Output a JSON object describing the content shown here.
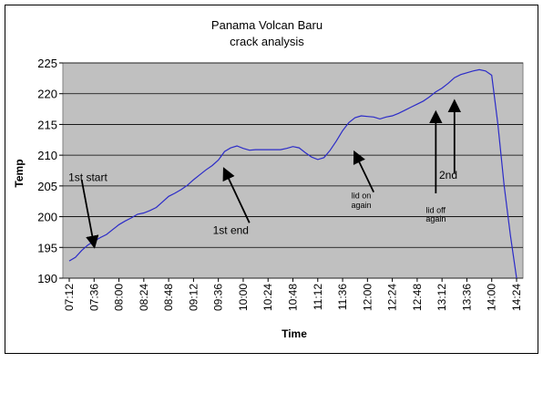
{
  "chart_data": {
    "type": "line",
    "title": "Panama Volcan Baru",
    "subtitle": "crack analysis",
    "xlabel": "Time",
    "ylabel": "Temp",
    "ylim": [
      190,
      225
    ],
    "yticks": [
      190,
      195,
      200,
      205,
      210,
      215,
      220,
      225
    ],
    "xticks": [
      "07:12",
      "07:36",
      "08:00",
      "08:24",
      "08:48",
      "09:12",
      "09:36",
      "10:00",
      "10:24",
      "10:48",
      "11:12",
      "11:36",
      "12:00",
      "12:24",
      "12:48",
      "13:12",
      "13:36",
      "14:00",
      "14:24"
    ],
    "grid": "horizontal",
    "plot_background": "#c0c0c0",
    "series_color": "#2b2bc8",
    "series": [
      {
        "x": [
          "07:12",
          "07:18",
          "07:24",
          "07:30",
          "07:36",
          "07:42",
          "07:48",
          "07:54",
          "08:00",
          "08:06",
          "08:12",
          "08:18",
          "08:24",
          "08:30",
          "08:36",
          "08:42",
          "08:48",
          "08:54",
          "09:00",
          "09:06",
          "09:12",
          "09:18",
          "09:24",
          "09:30",
          "09:36",
          "09:42",
          "09:48",
          "09:54",
          "10:00",
          "10:06",
          "10:12",
          "10:18",
          "10:24",
          "10:30",
          "10:36",
          "10:42",
          "10:48",
          "10:54",
          "11:00",
          "11:06",
          "11:12",
          "11:18",
          "11:24",
          "11:30",
          "11:36",
          "11:42",
          "11:48",
          "11:54",
          "12:00",
          "12:06",
          "12:12",
          "12:18",
          "12:24",
          "12:30",
          "12:36",
          "12:42",
          "12:48",
          "12:54",
          "13:00",
          "13:06",
          "13:12",
          "13:18",
          "13:24",
          "13:30",
          "13:36",
          "13:42",
          "13:48",
          "13:54",
          "14:00",
          "14:06",
          "14:12",
          "14:18",
          "14:24"
        ],
        "values": [
          192.8,
          193.4,
          194.5,
          195.4,
          196.0,
          196.6,
          197.1,
          197.9,
          198.7,
          199.3,
          199.8,
          200.4,
          200.6,
          201.0,
          201.5,
          202.4,
          203.3,
          203.8,
          204.4,
          205.1,
          206.0,
          206.8,
          207.6,
          208.3,
          209.2,
          210.6,
          211.2,
          211.5,
          211.1,
          210.8,
          210.9,
          210.9,
          210.9,
          210.9,
          210.9,
          211.1,
          211.4,
          211.2,
          210.4,
          209.7,
          209.3,
          209.6,
          210.8,
          212.3,
          214.0,
          215.3,
          216.1,
          216.4,
          216.3,
          216.2,
          215.9,
          216.2,
          216.4,
          216.8,
          217.3,
          217.8,
          218.3,
          218.8,
          219.5,
          220.3,
          220.9,
          221.7,
          222.6,
          223.1,
          223.4,
          223.7,
          223.9,
          223.7,
          223.0,
          215.0,
          205.0,
          197.0,
          190.0
        ]
      }
    ],
    "annotations": [
      {
        "text": "1st start",
        "x": "07:30",
        "y": 205.8
      },
      {
        "text": "1st end",
        "x": "09:48",
        "y": 197.2
      },
      {
        "text": "lid on",
        "x": "11:54",
        "y": 203.0
      },
      {
        "text": "again",
        "x": "11:54",
        "y": 201.4
      },
      {
        "text": "lid off",
        "x": "13:06",
        "y": 200.6
      },
      {
        "text": "again",
        "x": "13:06",
        "y": 199.2
      },
      {
        "text": "2nd",
        "x": "13:18",
        "y": 206.2
      }
    ],
    "arrows": [
      {
        "from": [
          "07:24",
          206.0
        ],
        "to": [
          "07:36",
          195.3
        ]
      },
      {
        "from": [
          "10:06",
          199.0
        ],
        "to": [
          "09:42",
          207.6
        ]
      },
      {
        "from": [
          "12:06",
          204.0
        ],
        "to": [
          "11:48",
          210.3
        ]
      },
      {
        "from": [
          "13:06",
          203.8
        ],
        "to": [
          "13:06",
          216.8
        ]
      },
      {
        "from": [
          "13:24",
          207.0
        ],
        "to": [
          "13:24",
          218.6
        ]
      }
    ]
  }
}
